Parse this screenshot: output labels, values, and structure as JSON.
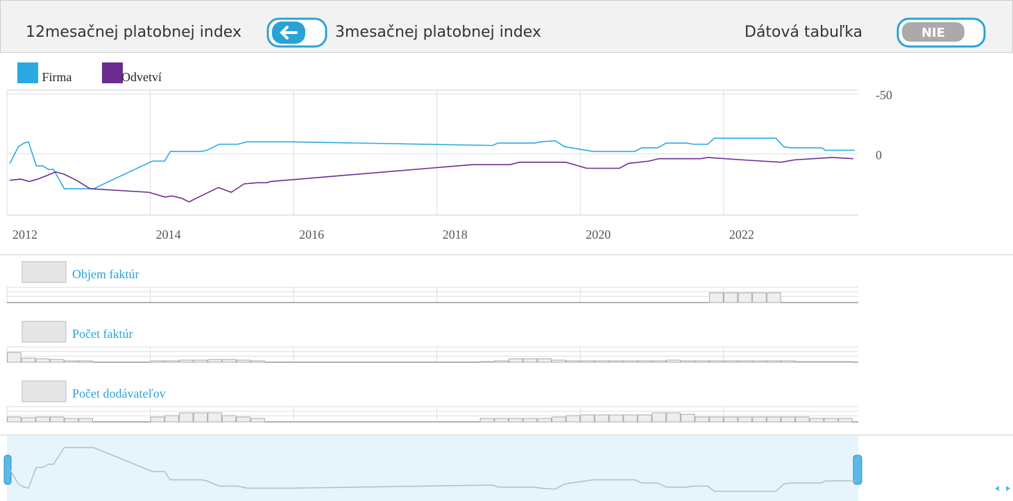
{
  "header": {
    "left_label": "12mesačnej platobnej index",
    "right_label": "3mesačnej platobnej index",
    "table_label": "Dátová tabuľka",
    "toggle": "NIE"
  },
  "chart_data": [
    {
      "type": "line",
      "inverted": true,
      "grid": true,
      "xlim": [
        2012,
        2023.88
      ],
      "xticks": [
        2012,
        2014,
        2016,
        2018,
        2020,
        2022
      ],
      "ylim": [
        51,
        -53
      ],
      "yticks": [
        -50,
        0
      ],
      "series": [
        {
          "name": "Firma",
          "color": "#29abe2",
          "x": [
            2012.04,
            2012.16,
            2012.24,
            2012.3,
            2012.41,
            2012.5,
            2012.58,
            2012.65,
            2012.8,
            2013.21,
            2014.03,
            2014.2,
            2014.28,
            2014.71,
            2014.79,
            2014.96,
            2015.22,
            2015.35,
            2015.97,
            2018.78,
            2018.85,
            2019.36,
            2019.45,
            2019.65,
            2019.78,
            2020.18,
            2020.76,
            2020.86,
            2021.08,
            2021.2,
            2021.49,
            2021.58,
            2021.78,
            2021.87,
            2022.73,
            2022.84,
            2022.94,
            2023.37,
            2023.42,
            2023.83
          ],
          "values": [
            8,
            -6,
            -9,
            -10,
            10,
            10,
            13,
            13,
            29,
            29,
            6,
            6,
            -2,
            -2,
            -3,
            -8,
            -8,
            -10,
            -10,
            -7,
            -9,
            -9,
            -10,
            -11,
            -6,
            -2,
            -2,
            -5,
            -5,
            -9,
            -9,
            -8,
            -8,
            -13,
            -13,
            -6,
            -5,
            -5,
            -3,
            -3
          ]
        },
        {
          "name": "Odvetví",
          "color": "#6a2c91",
          "x": [
            2012.04,
            2012.19,
            2012.31,
            2012.43,
            2012.56,
            2012.68,
            2012.8,
            2012.97,
            2013.16,
            2013.98,
            2014.21,
            2014.3,
            2014.44,
            2014.54,
            2014.71,
            2014.95,
            2015.13,
            2015.31,
            2015.49,
            2015.63,
            2015.68,
            2018.49,
            2019.02,
            2019.15,
            2019.8,
            2020.09,
            2020.55,
            2020.67,
            2020.96,
            2021.1,
            2021.68,
            2021.78,
            2022.26,
            2022.8,
            2022.99,
            2023.52,
            2023.81
          ],
          "values": [
            22,
            21,
            23,
            21,
            18,
            15,
            17,
            22,
            29,
            32,
            36,
            35,
            37,
            40,
            35,
            28,
            32,
            25,
            24,
            24,
            23,
            9,
            9,
            7,
            7,
            12,
            12,
            8,
            6,
            4,
            4,
            3,
            5,
            7,
            5,
            3,
            4
          ]
        }
      ]
    },
    {
      "type": "bar-panels",
      "grid": true,
      "xlim": [
        2012,
        2023.88
      ],
      "xticks": [
        2012,
        2014,
        2016,
        2018,
        2020,
        2022
      ],
      "ylim": [
        0,
        22
      ],
      "x": [
        2012.1,
        2012.3,
        2012.5,
        2012.7,
        2012.9,
        2013.1,
        2014.1,
        2014.3,
        2014.5,
        2014.7,
        2014.9,
        2015.1,
        2015.3,
        2015.5,
        2018.7,
        2018.9,
        2019.1,
        2019.3,
        2019.5,
        2019.7,
        2019.9,
        2020.1,
        2020.3,
        2020.5,
        2020.7,
        2020.9,
        2021.1,
        2021.3,
        2021.5,
        2021.7,
        2021.9,
        2022.1,
        2022.3,
        2022.5,
        2022.7,
        2022.9,
        2023.1,
        2023.3,
        2023.5,
        2023.7
      ],
      "series": [
        {
          "name": "Objem faktúr",
          "values": [
            0,
            0,
            0,
            0,
            0,
            0,
            0,
            0,
            0,
            0,
            0,
            0,
            0,
            0,
            0,
            0,
            0,
            0,
            0,
            0,
            0,
            0,
            0,
            0,
            0,
            0,
            0,
            0,
            0,
            0,
            14,
            14,
            14,
            14,
            14,
            0,
            0,
            0,
            0,
            0
          ]
        },
        {
          "name": "Počet faktúr",
          "values": [
            14,
            6,
            5,
            4,
            2,
            2,
            2,
            2,
            3,
            3,
            4,
            4,
            3,
            2,
            1,
            2,
            5,
            5,
            5,
            3,
            2,
            2,
            2,
            2,
            2,
            2,
            2,
            3,
            2,
            2,
            2,
            2,
            2,
            2,
            2,
            2,
            1,
            1,
            1,
            1
          ]
        },
        {
          "name": "Počet dodávateľov",
          "values": [
            7,
            6,
            7,
            7,
            5,
            5,
            7,
            9,
            13,
            13,
            13,
            9,
            7,
            5,
            5,
            5,
            5,
            5,
            5,
            7,
            9,
            10,
            10,
            10,
            10,
            10,
            13,
            13,
            11,
            7,
            7,
            7,
            7,
            7,
            7,
            7,
            7,
            5,
            5,
            5
          ]
        }
      ]
    }
  ]
}
